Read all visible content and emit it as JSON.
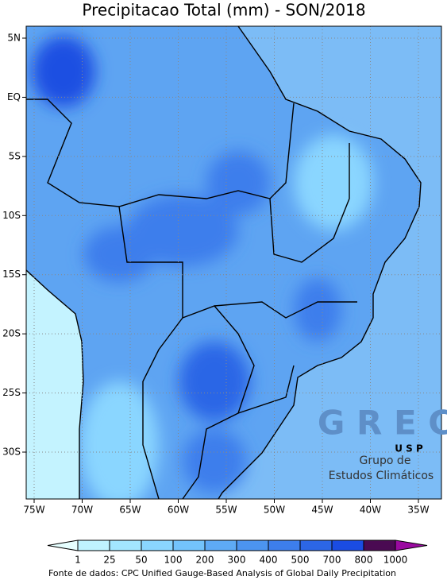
{
  "title": "Precipitacao Total (mm) - SON/2018",
  "map": {
    "lat_labels": [
      {
        "value": 5,
        "label": "5N"
      },
      {
        "value": 0,
        "label": "EQ"
      },
      {
        "value": -5,
        "label": "5S"
      },
      {
        "value": -10,
        "label": "10S"
      },
      {
        "value": -15,
        "label": "15S"
      },
      {
        "value": -20,
        "label": "20S"
      },
      {
        "value": -25,
        "label": "25S"
      },
      {
        "value": -30,
        "label": "30S"
      }
    ],
    "lon_labels": [
      {
        "value": -75,
        "label": "75W"
      },
      {
        "value": -70,
        "label": "70W"
      },
      {
        "value": -65,
        "label": "65W"
      },
      {
        "value": -60,
        "label": "60W"
      },
      {
        "value": -55,
        "label": "55W"
      },
      {
        "value": -50,
        "label": "50W"
      },
      {
        "value": -45,
        "label": "45W"
      },
      {
        "value": -40,
        "label": "40W"
      },
      {
        "value": -35,
        "label": "35W"
      }
    ],
    "grid": true
  },
  "colorbar": {
    "levels": [
      1,
      25,
      50,
      100,
      200,
      300,
      400,
      500,
      700,
      800,
      1000
    ],
    "colors": [
      "#e6ffff",
      "#bff3ff",
      "#a3e6ff",
      "#8ad6ff",
      "#73c3fb",
      "#5eaaf5",
      "#4c94f0",
      "#3d7eec",
      "#2c66e6",
      "#1a4ce2",
      "#4a0a52",
      "#9a0aa0"
    ]
  },
  "logo": {
    "letters": "G R E C",
    "sub": "U S P",
    "line1": "Grupo de",
    "line2": "Estudos Climáticos"
  },
  "source": "Fonte de dados: CPC Unified Gauge-Based Analysis of Global Daily Precipitation"
}
